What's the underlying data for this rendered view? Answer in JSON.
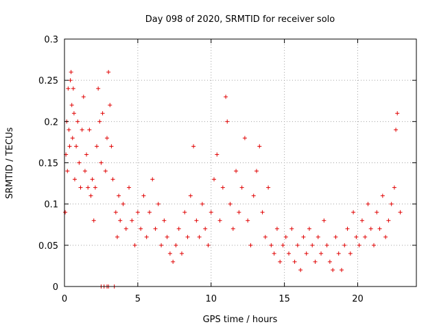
{
  "chart_data": {
    "type": "scatter",
    "title": "Day 098 of 2020, SRMTID for receiver solo",
    "xlabel": "GPS time / hours",
    "ylabel": "SRMTID / TECUs",
    "xlim": [
      0,
      24
    ],
    "ylim": [
      0,
      0.3
    ],
    "xticks": [
      0,
      5,
      10,
      15,
      20
    ],
    "yticks": [
      0,
      0.05,
      0.1,
      0.15,
      0.2,
      0.25,
      0.3
    ],
    "xtick_labels": [
      "0",
      "5",
      "10",
      "15",
      "20"
    ],
    "ytick_labels": [
      "0",
      "0.05",
      "0.1",
      "0.15",
      "0.2",
      "0.25",
      "0.3"
    ],
    "grid": true,
    "marker": "plus",
    "color": "#e00000",
    "series": [
      {
        "name": "SRMTID",
        "points": [
          [
            0.05,
            0.09
          ],
          [
            0.1,
            0.16
          ],
          [
            0.15,
            0.2
          ],
          [
            0.2,
            0.14
          ],
          [
            0.25,
            0.24
          ],
          [
            0.3,
            0.19
          ],
          [
            0.35,
            0.17
          ],
          [
            0.4,
            0.25
          ],
          [
            0.45,
            0.26
          ],
          [
            0.5,
            0.22
          ],
          [
            0.55,
            0.18
          ],
          [
            0.6,
            0.24
          ],
          [
            0.65,
            0.21
          ],
          [
            0.7,
            0.13
          ],
          [
            0.8,
            0.17
          ],
          [
            0.9,
            0.2
          ],
          [
            1.0,
            0.15
          ],
          [
            1.1,
            0.12
          ],
          [
            1.2,
            0.19
          ],
          [
            1.3,
            0.23
          ],
          [
            1.4,
            0.14
          ],
          [
            1.5,
            0.16
          ],
          [
            1.6,
            0.12
          ],
          [
            1.7,
            0.19
          ],
          [
            1.8,
            0.11
          ],
          [
            1.9,
            0.13
          ],
          [
            2.0,
            0.08
          ],
          [
            2.1,
            0.12
          ],
          [
            2.2,
            0.17
          ],
          [
            2.3,
            0.24
          ],
          [
            2.4,
            0.2
          ],
          [
            2.5,
            0.15
          ],
          [
            2.6,
            0.21
          ],
          [
            2.8,
            0.14
          ],
          [
            2.9,
            0.18
          ],
          [
            3.0,
            0.26
          ],
          [
            3.1,
            0.22
          ],
          [
            3.2,
            0.17
          ],
          [
            3.3,
            0.13
          ],
          [
            3.5,
            0.09
          ],
          [
            3.6,
            0.06
          ],
          [
            3.7,
            0.11
          ],
          [
            3.8,
            0.08
          ],
          [
            4.0,
            0.1
          ],
          [
            4.2,
            0.07
          ],
          [
            4.4,
            0.12
          ],
          [
            4.6,
            0.08
          ],
          [
            4.8,
            0.05
          ],
          [
            5.0,
            0.09
          ],
          [
            5.2,
            0.07
          ],
          [
            5.4,
            0.11
          ],
          [
            5.6,
            0.06
          ],
          [
            5.8,
            0.09
          ],
          [
            6.0,
            0.13
          ],
          [
            6.2,
            0.07
          ],
          [
            6.4,
            0.1
          ],
          [
            6.6,
            0.05
          ],
          [
            6.8,
            0.08
          ],
          [
            7.0,
            0.06
          ],
          [
            7.2,
            0.04
          ],
          [
            7.4,
            0.03
          ],
          [
            7.6,
            0.05
          ],
          [
            7.8,
            0.07
          ],
          [
            8.0,
            0.04
          ],
          [
            8.2,
            0.09
          ],
          [
            8.4,
            0.06
          ],
          [
            8.6,
            0.11
          ],
          [
            8.8,
            0.17
          ],
          [
            9.0,
            0.08
          ],
          [
            9.2,
            0.06
          ],
          [
            9.4,
            0.1
          ],
          [
            9.6,
            0.07
          ],
          [
            9.8,
            0.05
          ],
          [
            10.0,
            0.09
          ],
          [
            10.2,
            0.13
          ],
          [
            10.4,
            0.16
          ],
          [
            10.6,
            0.08
          ],
          [
            10.8,
            0.12
          ],
          [
            11.0,
            0.23
          ],
          [
            11.1,
            0.2
          ],
          [
            11.3,
            0.1
          ],
          [
            11.5,
            0.07
          ],
          [
            11.7,
            0.14
          ],
          [
            11.9,
            0.09
          ],
          [
            12.1,
            0.12
          ],
          [
            12.3,
            0.18
          ],
          [
            12.5,
            0.08
          ],
          [
            12.7,
            0.05
          ],
          [
            12.9,
            0.11
          ],
          [
            13.1,
            0.14
          ],
          [
            13.3,
            0.17
          ],
          [
            13.5,
            0.09
          ],
          [
            13.7,
            0.06
          ],
          [
            13.9,
            0.12
          ],
          [
            14.1,
            0.05
          ],
          [
            14.3,
            0.04
          ],
          [
            14.5,
            0.07
          ],
          [
            14.7,
            0.03
          ],
          [
            14.9,
            0.05
          ],
          [
            15.1,
            0.06
          ],
          [
            15.3,
            0.04
          ],
          [
            15.5,
            0.07
          ],
          [
            15.7,
            0.03
          ],
          [
            15.9,
            0.05
          ],
          [
            16.1,
            0.02
          ],
          [
            16.3,
            0.06
          ],
          [
            16.5,
            0.04
          ],
          [
            16.7,
            0.07
          ],
          [
            16.9,
            0.05
          ],
          [
            17.1,
            0.03
          ],
          [
            17.3,
            0.06
          ],
          [
            17.5,
            0.04
          ],
          [
            17.7,
            0.08
          ],
          [
            17.9,
            0.05
          ],
          [
            18.1,
            0.03
          ],
          [
            18.3,
            0.02
          ],
          [
            18.5,
            0.06
          ],
          [
            18.7,
            0.04
          ],
          [
            18.9,
            0.02
          ],
          [
            19.1,
            0.05
          ],
          [
            19.3,
            0.07
          ],
          [
            19.5,
            0.04
          ],
          [
            19.7,
            0.09
          ],
          [
            19.9,
            0.06
          ],
          [
            20.1,
            0.05
          ],
          [
            20.3,
            0.08
          ],
          [
            20.5,
            0.06
          ],
          [
            20.7,
            0.1
          ],
          [
            20.9,
            0.07
          ],
          [
            21.1,
            0.05
          ],
          [
            21.3,
            0.09
          ],
          [
            21.5,
            0.07
          ],
          [
            21.7,
            0.11
          ],
          [
            21.9,
            0.06
          ],
          [
            22.1,
            0.08
          ],
          [
            22.3,
            0.1
          ],
          [
            22.5,
            0.12
          ],
          [
            22.6,
            0.19
          ],
          [
            22.7,
            0.21
          ],
          [
            22.9,
            0.09
          ],
          [
            2.5,
            0.0
          ],
          [
            2.7,
            0.0
          ],
          [
            2.9,
            0.0
          ],
          [
            3.0,
            0.0
          ],
          [
            3.4,
            0.0
          ]
        ]
      }
    ]
  }
}
